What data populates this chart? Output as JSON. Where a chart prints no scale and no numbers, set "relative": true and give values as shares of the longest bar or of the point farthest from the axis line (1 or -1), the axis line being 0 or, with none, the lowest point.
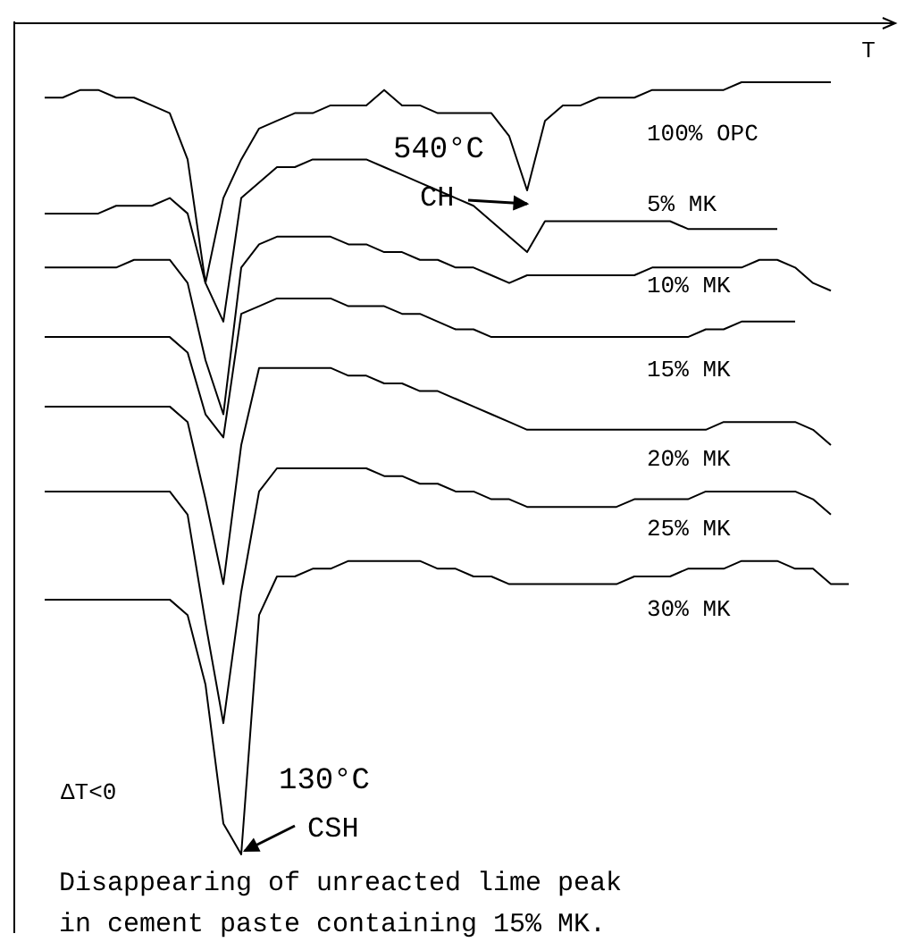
{
  "chart_data": {
    "type": "line",
    "relative": true,
    "xlabel": "T",
    "categories": [
      null,
      null,
      null,
      null,
      null,
      null,
      null,
      null,
      null,
      null,
      null,
      null,
      null,
      null,
      null,
      null,
      null,
      null,
      null,
      null,
      null,
      null,
      null,
      null,
      null,
      null,
      null,
      null,
      null,
      null,
      null,
      null,
      null,
      null,
      null,
      null,
      null,
      null,
      null,
      null,
      null,
      null,
      null,
      null,
      null,
      null,
      null
    ],
    "series": [
      {
        "name": "100% OPC",
        "color": "#000000",
        "values": [
          null,
          0.98,
          0.98,
          0.99,
          0.99,
          0.98,
          0.98,
          0.97,
          0.96,
          0.9,
          0.74,
          0.85,
          0.9,
          0.94,
          0.95,
          0.96,
          0.96,
          0.97,
          0.97,
          0.97,
          0.99,
          0.97,
          0.97,
          0.96,
          0.96,
          0.96,
          0.96,
          0.93,
          0.86,
          0.95,
          0.97,
          0.97,
          0.98,
          0.98,
          0.98,
          0.99,
          0.99,
          0.99,
          0.99,
          0.99,
          1.0,
          1.0,
          1.0,
          1.0,
          1.0,
          1.0,
          null
        ]
      },
      {
        "name": "5% MK",
        "color": "#000000",
        "values": [
          null,
          0.83,
          0.83,
          0.83,
          0.83,
          0.84,
          0.84,
          0.84,
          0.85,
          0.83,
          0.74,
          0.69,
          0.85,
          0.87,
          0.89,
          0.89,
          0.9,
          0.9,
          0.9,
          0.9,
          0.89,
          0.88,
          0.87,
          0.86,
          0.85,
          0.84,
          0.82,
          0.8,
          0.78,
          0.82,
          0.82,
          0.82,
          0.82,
          0.82,
          0.82,
          0.82,
          0.82,
          0.81,
          0.81,
          0.81,
          0.81,
          0.81,
          0.81,
          null,
          null,
          null,
          null
        ]
      },
      {
        "name": "10% MK",
        "color": "#000000",
        "values": [
          null,
          0.76,
          0.76,
          0.76,
          0.76,
          0.76,
          0.77,
          0.77,
          0.77,
          0.74,
          0.64,
          0.57,
          0.76,
          0.79,
          0.8,
          0.8,
          0.8,
          0.8,
          0.79,
          0.79,
          0.78,
          0.78,
          0.77,
          0.77,
          0.76,
          0.76,
          0.75,
          0.74,
          0.75,
          0.75,
          0.75,
          0.75,
          0.75,
          0.75,
          0.75,
          0.76,
          0.76,
          0.76,
          0.76,
          0.76,
          0.76,
          0.77,
          0.77,
          0.76,
          0.74,
          0.73,
          null
        ]
      },
      {
        "name": "15% MK",
        "color": "#000000",
        "values": [
          null,
          0.67,
          0.67,
          0.67,
          0.67,
          0.67,
          0.67,
          0.67,
          0.67,
          0.65,
          0.57,
          0.54,
          0.7,
          0.71,
          0.72,
          0.72,
          0.72,
          0.72,
          0.71,
          0.71,
          0.71,
          0.7,
          0.7,
          0.69,
          0.68,
          0.68,
          0.67,
          0.67,
          0.67,
          0.67,
          0.67,
          0.67,
          0.67,
          0.67,
          0.67,
          0.67,
          0.67,
          0.67,
          0.68,
          0.68,
          0.69,
          0.69,
          0.69,
          0.69,
          null,
          null,
          null
        ]
      },
      {
        "name": "20% MK",
        "color": "#000000",
        "values": [
          null,
          0.58,
          0.58,
          0.58,
          0.58,
          0.58,
          0.58,
          0.58,
          0.58,
          0.56,
          0.46,
          0.35,
          0.53,
          0.63,
          0.63,
          0.63,
          0.63,
          0.63,
          0.62,
          0.62,
          0.61,
          0.61,
          0.6,
          0.6,
          0.59,
          0.58,
          0.57,
          0.56,
          0.55,
          0.55,
          0.55,
          0.55,
          0.55,
          0.55,
          0.55,
          0.55,
          0.55,
          0.55,
          0.55,
          0.56,
          0.56,
          0.56,
          0.56,
          0.56,
          0.55,
          0.53,
          null
        ]
      },
      {
        "name": "25% MK",
        "color": "#000000",
        "values": [
          null,
          0.47,
          0.47,
          0.47,
          0.47,
          0.47,
          0.47,
          0.47,
          0.47,
          0.44,
          0.3,
          0.17,
          0.34,
          0.47,
          0.5,
          0.5,
          0.5,
          0.5,
          0.5,
          0.5,
          0.49,
          0.49,
          0.48,
          0.48,
          0.47,
          0.47,
          0.46,
          0.46,
          0.45,
          0.45,
          0.45,
          0.45,
          0.45,
          0.45,
          0.46,
          0.46,
          0.46,
          0.46,
          0.47,
          0.47,
          0.47,
          0.47,
          0.47,
          0.47,
          0.46,
          0.44,
          null
        ]
      },
      {
        "name": "30% MK",
        "color": "#000000",
        "values": [
          null,
          0.33,
          0.33,
          0.33,
          0.33,
          0.33,
          0.33,
          0.33,
          0.33,
          0.31,
          0.22,
          0.04,
          0.0,
          0.31,
          0.36,
          0.36,
          0.37,
          0.37,
          0.38,
          0.38,
          0.38,
          0.38,
          0.38,
          0.37,
          0.37,
          0.36,
          0.36,
          0.35,
          0.35,
          0.35,
          0.35,
          0.35,
          0.35,
          0.35,
          0.36,
          0.36,
          0.36,
          0.37,
          0.37,
          0.37,
          0.38,
          0.38,
          0.38,
          0.37,
          0.37,
          0.35,
          0.35
        ]
      }
    ],
    "annotations": [
      "540°C",
      "CH",
      "130°C",
      "CSH",
      "ΔT<0",
      "Disappearing of unreacted lime peak in cement paste containing 15% MK."
    ]
  }
}
